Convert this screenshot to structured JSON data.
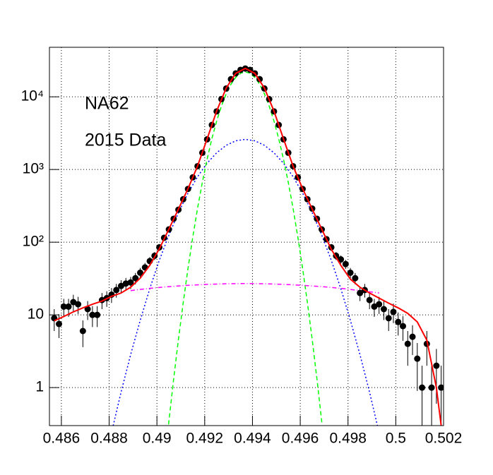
{
  "chart_data": {
    "type": "scatter",
    "annotations": [
      "NA62",
      "2015 Data"
    ],
    "xlim": [
      0.4855,
      0.502
    ],
    "ylim": [
      0.3,
      48000
    ],
    "log_y": true,
    "grid": true,
    "xticks": [
      0.486,
      0.488,
      0.49,
      0.492,
      0.494,
      0.496,
      0.498,
      0.5,
      0.502
    ],
    "yticks": [
      1,
      10,
      {
        "value": 100,
        "label": "10²"
      },
      {
        "value": 1000,
        "label": "10³"
      },
      {
        "value": 10000,
        "label": "10⁴"
      }
    ],
    "series": [
      {
        "type": "line",
        "color": "#0000ff",
        "dash": "2,3",
        "x": [
          0.4881,
          0.4885,
          0.4889,
          0.4893,
          0.4897,
          0.4901,
          0.4905,
          0.4909,
          0.4913,
          0.4917,
          0.4921,
          0.4925,
          0.4929,
          0.4933,
          0.4937,
          0.4941,
          0.4945,
          0.4949,
          0.4953,
          0.4957,
          0.4961,
          0.4965,
          0.4969,
          0.4973,
          0.4977,
          0.4981,
          0.4985,
          0.4989,
          0.4993
        ],
        "values": [
          0.24,
          0.87,
          2.84,
          8.4,
          22.9,
          56.4,
          125,
          255,
          473,
          795,
          1219,
          1698,
          2152,
          2480,
          2600,
          2480,
          2152,
          1698,
          1219,
          795,
          473,
          255,
          125,
          56.4,
          22.9,
          8.4,
          2.84,
          0.87,
          0.24
        ]
      },
      {
        "type": "line",
        "color": "#00ff00",
        "dash": "6,4",
        "x": [
          0.4903,
          0.4905,
          0.4907,
          0.4909,
          0.4911,
          0.4913,
          0.4915,
          0.4917,
          0.4919,
          0.4921,
          0.4923,
          0.4925,
          0.4927,
          0.4929,
          0.4931,
          0.4933,
          0.4935,
          0.4937,
          0.4939,
          0.4941,
          0.4943,
          0.4945,
          0.4947,
          0.4949,
          0.4951,
          0.4953,
          0.4955,
          0.4957,
          0.4959,
          0.4961,
          0.4963,
          0.4965,
          0.4967,
          0.4969,
          0.4971
        ],
        "values": [
          0.082,
          0.34,
          1.31,
          4.6,
          14.7,
          43.5,
          117,
          291,
          663,
          1381,
          2645,
          4640,
          7450,
          11010,
          14910,
          18510,
          21070,
          22000,
          21070,
          18510,
          14910,
          11010,
          7450,
          4640,
          2645,
          1381,
          663,
          291,
          117,
          43.5,
          14.7,
          4.6,
          1.31,
          0.34,
          0.082
        ]
      },
      {
        "type": "line",
        "color": "#ff00ff",
        "dash": "6,3,1,3",
        "x": [
          0.4889,
          0.4897,
          0.4905,
          0.4913,
          0.4921,
          0.4929,
          0.4937,
          0.4945,
          0.4953,
          0.4961,
          0.4969,
          0.4977,
          0.4985,
          0.4993
        ],
        "values": [
          21.6,
          23.2,
          24.5,
          25.5,
          26.3,
          26.8,
          27,
          26.8,
          26.3,
          25.5,
          24.5,
          23.2,
          21.6,
          20.0
        ]
      },
      {
        "type": "errorbar",
        "color": "#000000",
        "x": [
          0.4857,
          0.4859,
          0.4861,
          0.4863,
          0.4865,
          0.4867,
          0.4869,
          0.4871,
          0.4873,
          0.4875,
          0.4877,
          0.4879,
          0.4881,
          0.4883,
          0.4885,
          0.4887,
          0.4889,
          0.4891,
          0.4893,
          0.4895,
          0.4897,
          0.4899,
          0.4901,
          0.4903,
          0.4905,
          0.4907,
          0.4909,
          0.4911,
          0.4913,
          0.4915,
          0.4917,
          0.4919,
          0.4921,
          0.4923,
          0.4925,
          0.4927,
          0.4929,
          0.4931,
          0.4933,
          0.4935,
          0.4937,
          0.4939,
          0.4941,
          0.4943,
          0.4945,
          0.4947,
          0.4949,
          0.4951,
          0.4953,
          0.4955,
          0.4957,
          0.4959,
          0.4961,
          0.4963,
          0.4965,
          0.4967,
          0.4969,
          0.4971,
          0.4973,
          0.4975,
          0.4977,
          0.4979,
          0.4981,
          0.4983,
          0.4985,
          0.4987,
          0.4989,
          0.4991,
          0.4993,
          0.4995,
          0.4997,
          0.4999,
          0.5001,
          0.5003,
          0.5005,
          0.5007,
          0.5009,
          0.5011,
          0.5013,
          0.5015,
          0.5017,
          0.5019
        ],
        "values": [
          9,
          7.5,
          13,
          13,
          15,
          14,
          6,
          12,
          10,
          10,
          16,
          17,
          19,
          22,
          25,
          27,
          28,
          32,
          38,
          45,
          55,
          65,
          85,
          115,
          150,
          210,
          280,
          390,
          540,
          780,
          1110,
          1700,
          2600,
          4100,
          6300,
          9300,
          13000,
          17500,
          21000,
          23500,
          24500,
          23500,
          21000,
          17500,
          13000,
          9300,
          6300,
          4100,
          2600,
          1700,
          1110,
          780,
          540,
          390,
          290,
          210,
          150,
          110,
          85,
          65,
          58,
          50,
          38,
          32,
          20,
          22,
          16,
          13,
          14,
          12,
          9,
          11,
          8,
          7,
          4,
          5,
          2.5,
          1,
          4,
          1,
          2,
          1
        ],
        "errors": [
          3,
          2.7,
          3.6,
          3.6,
          3.9,
          3.7,
          2.4,
          3.5,
          3.2,
          3.2,
          4,
          4.1,
          4.4,
          4.7,
          5,
          5.2,
          5.3,
          5.7,
          6.2,
          6.7,
          7.4,
          8.1,
          9.2,
          10.7,
          12.2,
          14.5,
          16.7,
          19.7,
          23.2,
          27.9,
          33.3,
          41.2,
          51,
          64,
          79,
          96,
          114,
          132,
          145,
          153,
          157,
          153,
          145,
          132,
          114,
          96,
          79,
          64,
          51,
          41.2,
          33.3,
          27.9,
          23.2,
          19.7,
          17,
          14.5,
          12.2,
          10.5,
          9.2,
          8.1,
          7.6,
          7.1,
          6.2,
          5.7,
          4.5,
          4.7,
          4,
          3.6,
          3.7,
          3.5,
          3,
          3.3,
          2.8,
          2.6,
          2,
          2.2,
          1.6,
          1,
          2,
          1,
          1.4,
          1
        ]
      },
      {
        "type": "line",
        "color": "#ff0000",
        "width": 2,
        "x": [
          0.4857,
          0.4861,
          0.4865,
          0.4869,
          0.4873,
          0.4877,
          0.4881,
          0.4885,
          0.4889,
          0.4893,
          0.4897,
          0.4901,
          0.4905,
          0.4909,
          0.4913,
          0.4917,
          0.4921,
          0.4925,
          0.4929,
          0.4933,
          0.4937,
          0.4941,
          0.4945,
          0.4949,
          0.4953,
          0.4957,
          0.4961,
          0.4965,
          0.4969,
          0.4973,
          0.4977,
          0.4981,
          0.4985,
          0.4989,
          0.4993,
          0.4997,
          0.5001,
          0.5005,
          0.5009,
          0.5013,
          0.5017,
          0.5019
        ],
        "values": [
          8.3,
          9.5,
          11,
          12.5,
          14,
          15.5,
          18,
          20,
          24,
          32,
          48,
          81,
          151,
          286,
          544,
          1113,
          2627,
          6365,
          13189,
          21017,
          24627,
          21017,
          13189,
          6365,
          2627,
          1113,
          544,
          286,
          151,
          80,
          48,
          31,
          24,
          20,
          17,
          14.5,
          12.5,
          10.5,
          8,
          4.5,
          1,
          0.3
        ]
      }
    ]
  }
}
